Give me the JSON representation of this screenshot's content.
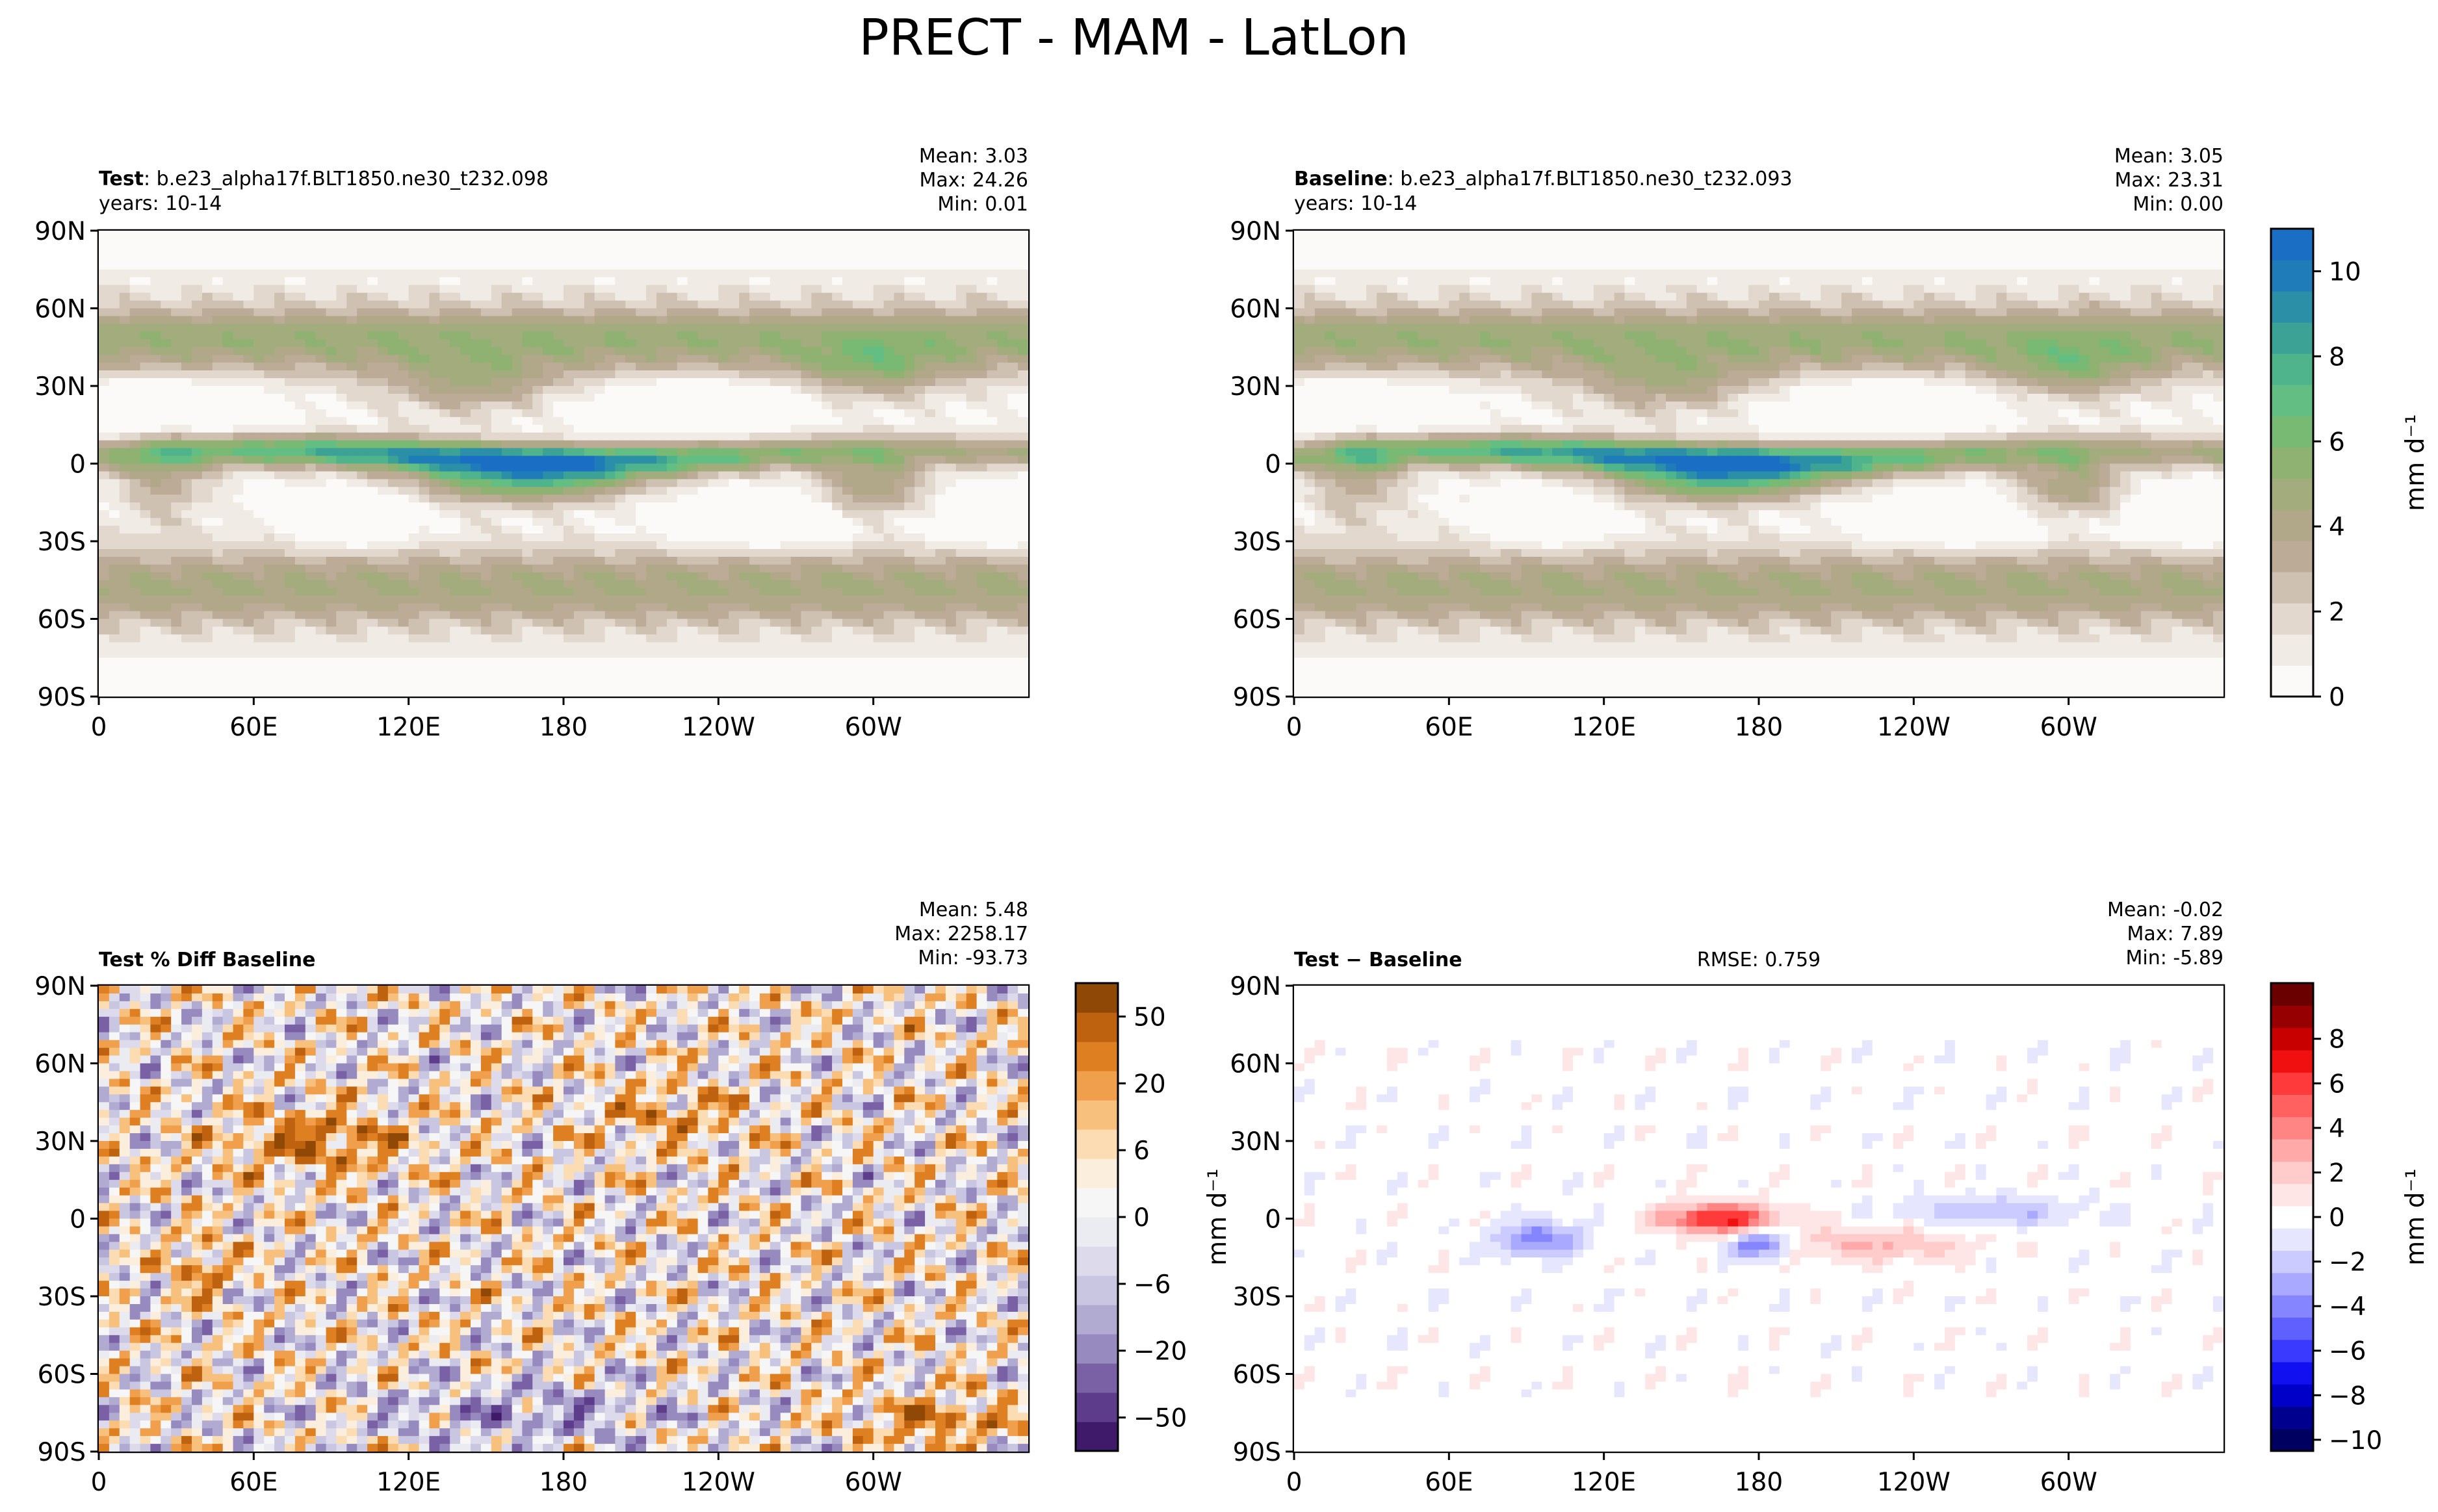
{
  "figure": {
    "title": "PRECT - MAM - LatLon"
  },
  "chart_data": [
    {
      "type": "heatmap",
      "panel": "test",
      "label_bold": "Test",
      "label_rest": ": b.e23_alpha17f.BLT1850.ne30_t232.098",
      "years": "years: 10-14",
      "stats": [
        "Mean:  3.03",
        "Max: 24.26",
        "Min:  0.01"
      ],
      "x_ticks": [
        "0",
        "60E",
        "120E",
        "180",
        "120W",
        "60W"
      ],
      "y_ticks": [
        "90N",
        "60N",
        "30N",
        "0",
        "30S",
        "60S",
        "90S"
      ],
      "xlim": [
        0,
        360
      ],
      "ylim": [
        -90,
        90
      ],
      "colormap": "precip"
    },
    {
      "type": "heatmap",
      "panel": "baseline",
      "label_bold": "Baseline",
      "label_rest": ": b.e23_alpha17f.BLT1850.ne30_t232.093",
      "years": "years: 10-14",
      "stats": [
        "Mean:  3.05",
        "Max: 23.31",
        "Min:  0.00"
      ],
      "x_ticks": [
        "0",
        "60E",
        "120E",
        "180",
        "120W",
        "60W"
      ],
      "y_ticks": [
        "90N",
        "60N",
        "30N",
        "0",
        "30S",
        "60S",
        "90S"
      ],
      "xlim": [
        0,
        360
      ],
      "ylim": [
        -90,
        90
      ],
      "colormap": "precip",
      "colorbar": {
        "ticks": [
          "0",
          "2",
          "4",
          "6",
          "8",
          "10"
        ],
        "label": "mm d⁻¹",
        "colors": [
          "#fbfaf8",
          "#f0ebe5",
          "#e2d8cd",
          "#cfc1b1",
          "#bcab96",
          "#b0a888",
          "#a3ac7c",
          "#8fb171",
          "#78b974",
          "#63be84",
          "#4fb48b",
          "#3ba295",
          "#2a8fa7",
          "#1f7cb8",
          "#1a6fc4"
        ]
      }
    },
    {
      "type": "heatmap",
      "panel": "pctdiff",
      "label_bold": "Test % Diff Baseline",
      "label_rest": "",
      "years": "",
      "stats": [
        "Mean:  5.48",
        "Max: 2258.17",
        "Min: -93.73"
      ],
      "x_ticks": [
        "0",
        "60E",
        "120E",
        "180",
        "120W",
        "60W"
      ],
      "y_ticks": [
        "90N",
        "60N",
        "30N",
        "0",
        "30S",
        "60S",
        "90S"
      ],
      "xlim": [
        0,
        360
      ],
      "ylim": [
        -90,
        90
      ],
      "colormap": "diverging-orange-purple",
      "colorbar": {
        "ticks": [
          "−50",
          "−20",
          "−6",
          "0",
          "6",
          "20",
          "50"
        ],
        "label": "",
        "colors": [
          "#3f1a6b",
          "#5e3c8c",
          "#7a61a6",
          "#968abf",
          "#b1abd2",
          "#c9c6e1",
          "#dcdaeb",
          "#ebebf2",
          "#f6f6f6",
          "#fbeedd",
          "#fbdcb3",
          "#f8c07d",
          "#f0a04c",
          "#de7f21",
          "#bf6210",
          "#8f4806"
        ]
      }
    },
    {
      "type": "heatmap",
      "panel": "diff",
      "label_bold": "Test − Baseline",
      "label_rest": "",
      "years": "",
      "rmse": "RMSE: 0.759",
      "stats": [
        "Mean: -0.02",
        "Max:  7.89",
        "Min: -5.89"
      ],
      "x_ticks": [
        "0",
        "60E",
        "120E",
        "180",
        "120W",
        "60W"
      ],
      "y_ticks": [
        "90N",
        "60N",
        "30N",
        "0",
        "30S",
        "60S",
        "90S"
      ],
      "xlim": [
        0,
        360
      ],
      "ylim": [
        -90,
        90
      ],
      "colormap": "diverging-blue-red",
      "colorbar": {
        "ticks": [
          "−10",
          "−8",
          "−6",
          "−4",
          "−2",
          "0",
          "2",
          "4",
          "6",
          "8"
        ],
        "label": "mm d⁻¹",
        "colors": [
          "#000060",
          "#00008f",
          "#0000c8",
          "#1010f0",
          "#3a3aff",
          "#6060ff",
          "#8585ff",
          "#a9a9ff",
          "#cbcbff",
          "#e6e6ff",
          "#ffffff",
          "#ffe6e6",
          "#ffcbcb",
          "#ffa9a9",
          "#ff8585",
          "#ff6060",
          "#ff3a3a",
          "#f01010",
          "#c80000",
          "#960000",
          "#6a0000"
        ]
      }
    }
  ],
  "left_unit_label": "mm d⁻¹"
}
